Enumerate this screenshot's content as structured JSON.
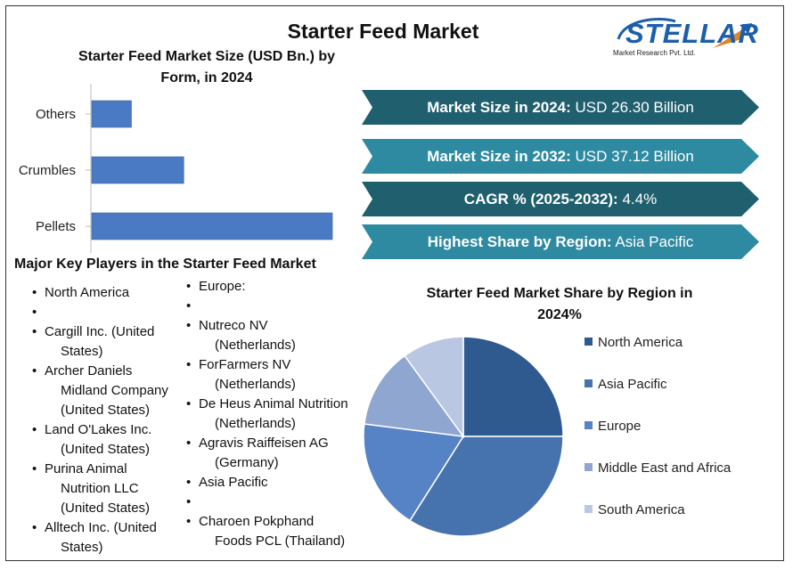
{
  "title": "Starter Feed Market",
  "logo": {
    "name": "STELLAR",
    "tagline": "Market Research Pvt. Ltd."
  },
  "bar_section": {
    "title_line1": "Starter Feed Market Size (USD Bn.) by",
    "title_line2": "Form, in 2024"
  },
  "stats": [
    {
      "label": "Market Size in 2024:",
      "value": "USD 26.30 Billion",
      "color": "#1f5f6e"
    },
    {
      "label": "Market Size in 2032:",
      "value": "USD 37.12 Billion",
      "color": "#2e8aa1"
    },
    {
      "label": "CAGR % (2025-2032):",
      "value": "4.4%",
      "color": "#1f5f6e"
    },
    {
      "label": "Highest Share by Region:",
      "value": "Asia Pacific",
      "color": "#2e8aa1"
    }
  ],
  "players": {
    "title": "Major Key Players in the Starter Feed Market",
    "col1": [
      {
        "l1": "North America",
        "l2": ""
      },
      {
        "l1": "",
        "l2": ""
      },
      {
        "l1": "Cargill Inc. (United",
        "l2": "States)"
      },
      {
        "l1": "Archer Daniels",
        "l2": "Midland Company",
        "l3": "(United States)"
      },
      {
        "l1": "Land O'Lakes Inc.",
        "l2": "(United States)"
      },
      {
        "l1": "Purina Animal",
        "l2": "Nutrition LLC",
        "l3": "(United States)"
      },
      {
        "l1": "Alltech Inc. (United",
        "l2": "States)"
      }
    ],
    "col2": [
      {
        "l1": "Europe:",
        "l2": ""
      },
      {
        "l1": "",
        "l2": ""
      },
      {
        "l1": "Nutreco NV",
        "l2": "(Netherlands)"
      },
      {
        "l1": "ForFarmers NV",
        "l2": "(Netherlands)"
      },
      {
        "l1": "De Heus Animal Nutrition",
        "l2": "(Netherlands)"
      },
      {
        "l1": "Agravis Raiffeisen AG",
        "l2": "(Germany)"
      },
      {
        "l1": "Asia Pacific",
        "l2": ""
      },
      {
        "l1": "",
        "l2": ""
      },
      {
        "l1": "Charoen Pokphand",
        "l2": "Foods PCL (Thailand)"
      }
    ]
  },
  "pie_section": {
    "title_line1": "Starter Feed Market Share by Region in",
    "title_line2": "2024%"
  },
  "chart_data": [
    {
      "type": "bar",
      "orientation": "horizontal",
      "title": "Starter Feed Market Size (USD Bn.) by Form, in 2024",
      "categories": [
        "Others",
        "Crumbles",
        "Pellets"
      ],
      "values": [
        2.8,
        6.5,
        17.0
      ],
      "xlim": [
        0,
        17.5
      ],
      "color": "#4a7ac4",
      "grid": false
    },
    {
      "type": "pie",
      "title": "Starter Feed Market Share by Region in 2024%",
      "labels": [
        "North America",
        "Asia Pacific",
        "Europe",
        "Middle East and Africa",
        "South America"
      ],
      "values": [
        25,
        34,
        18,
        13,
        10
      ],
      "colors": [
        "#2f5a8f",
        "#4672ad",
        "#5583c5",
        "#8fa6d1",
        "#b9c7e2"
      ],
      "start_angle_deg": 0,
      "direction": "clockwise",
      "legend_position": "right"
    }
  ]
}
